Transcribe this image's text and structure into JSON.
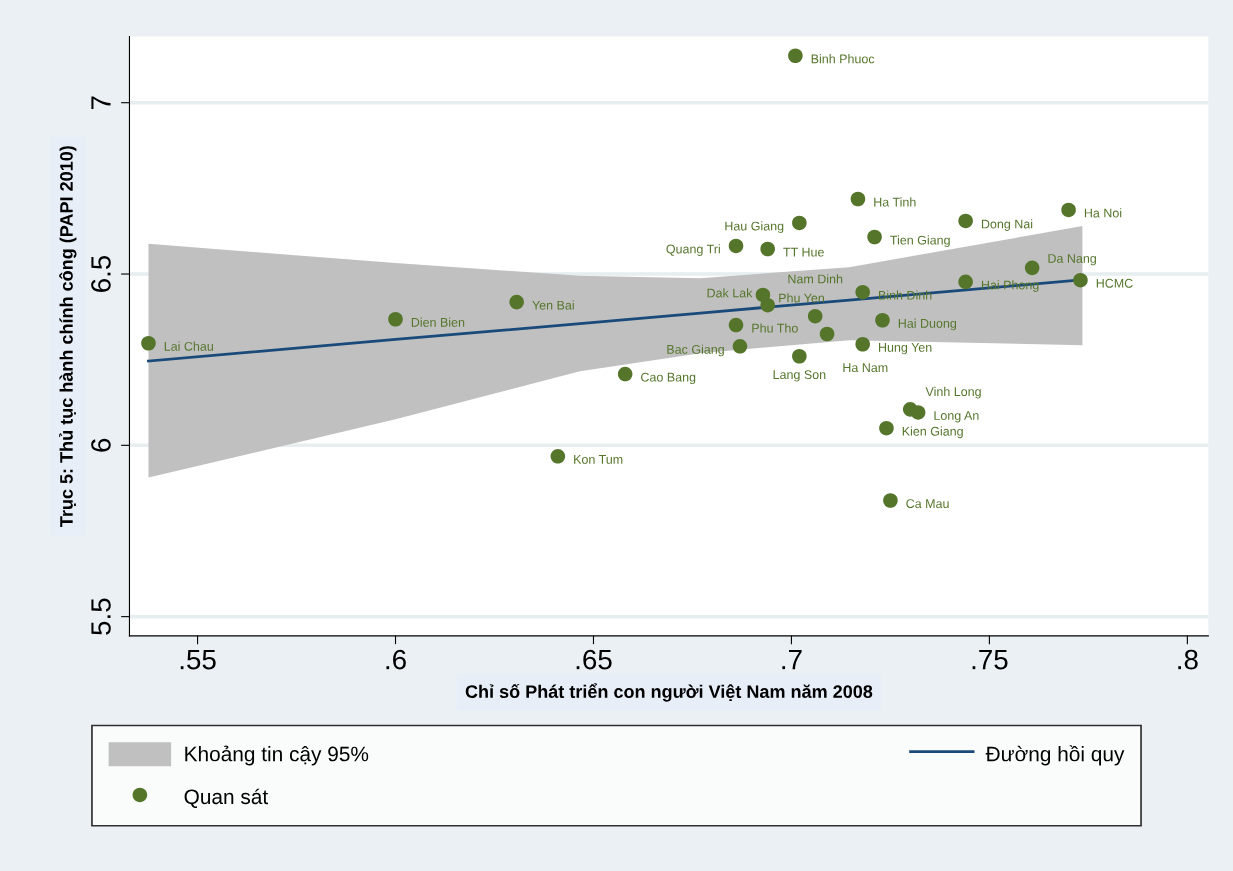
{
  "chart_data": {
    "type": "scatter",
    "xlabel": "Chỉ số Phát triển con người Việt Nam năm 2008",
    "ylabel": "Trục 5: Thủ tục hành chính công (PAPI 2010)",
    "xlim": [
      0.5328,
      0.8053
    ],
    "ylim": [
      5.444,
      7.193
    ],
    "xticks": [
      {
        "value": 0.55,
        "label": ".55"
      },
      {
        "value": 0.6,
        "label": ".6"
      },
      {
        "value": 0.65,
        "label": ".65"
      },
      {
        "value": 0.7,
        "label": ".7"
      },
      {
        "value": 0.75,
        "label": ".75"
      },
      {
        "value": 0.8,
        "label": ".8"
      }
    ],
    "yticks": [
      5.5,
      6,
      6.5,
      7
    ],
    "grid": "y",
    "legend": "bottom",
    "series": [
      {
        "type": "line",
        "name": "Đường hồi quy",
        "color": "#1a4a7a",
        "x": [
          0.5376,
          0.6,
          0.6466,
          0.677,
          0.7146,
          0.7735
        ],
        "values": [
          6.246,
          6.309,
          6.355,
          6.386,
          6.424,
          6.483
        ],
        "lower": [
          5.906,
          6.076,
          6.216,
          6.269,
          6.307,
          6.292
        ],
        "upper": [
          6.588,
          6.532,
          6.495,
          6.488,
          6.52,
          6.64
        ]
      },
      {
        "name": "Quan sát",
        "color": "#55752b",
        "marker": "circle",
        "x": [
          0.5376,
          0.6,
          0.6306,
          0.658,
          0.641,
          0.701,
          0.7168,
          0.702,
          0.744,
          0.77,
          0.721,
          0.686,
          0.694,
          0.7608,
          0.773,
          0.744,
          0.718,
          0.6928,
          0.694,
          0.706,
          0.723,
          0.686,
          0.709,
          0.718,
          0.687,
          0.702,
          0.73,
          0.732,
          0.724,
          0.725
        ],
        "values": [
          6.298,
          6.368,
          6.418,
          6.208,
          5.968,
          7.137,
          6.719,
          6.649,
          6.655,
          6.687,
          6.608,
          6.582,
          6.573,
          6.518,
          6.482,
          6.477,
          6.447,
          6.439,
          6.409,
          6.377,
          6.365,
          6.351,
          6.325,
          6.295,
          6.289,
          6.26,
          6.105,
          6.096,
          6.05,
          5.839
        ]
      }
    ],
    "annotations": [
      "Khoảng tin cậy 95%",
      {
        "text": "Lai Chau",
        "x": 0.5376,
        "y": 6.298
      },
      {
        "text": "Dien Bien",
        "x": 0.6,
        "y": 6.368
      },
      {
        "text": "Yen Bai",
        "x": 0.6306,
        "y": 6.418
      },
      {
        "text": "Cao Bang",
        "x": 0.658,
        "y": 6.208
      },
      {
        "text": "Kon Tum",
        "x": 0.641,
        "y": 5.968
      },
      {
        "text": "Binh Phuoc",
        "x": 0.701,
        "y": 7.137
      },
      {
        "text": "Ha Tinh",
        "x": 0.7168,
        "y": 6.719
      },
      {
        "text": "Hau Giang",
        "x": 0.702,
        "y": 6.649
      },
      {
        "text": "Dong Nai",
        "x": 0.744,
        "y": 6.655
      },
      {
        "text": "Ha Noi",
        "x": 0.77,
        "y": 6.687
      },
      {
        "text": "Tien Giang",
        "x": 0.721,
        "y": 6.608
      },
      {
        "text": "Quang Tri",
        "x": 0.686,
        "y": 6.582
      },
      {
        "text": "TT Hue",
        "x": 0.694,
        "y": 6.573
      },
      {
        "text": "Da Nang",
        "x": 0.7608,
        "y": 6.518
      },
      {
        "text": "HCMC",
        "x": 0.773,
        "y": 6.482
      },
      {
        "text": "Hai Phong",
        "x": 0.744,
        "y": 6.477
      },
      {
        "text": "Binh Dinh",
        "x": 0.718,
        "y": 6.447
      },
      {
        "text": "Phu Yen",
        "x": 0.6928,
        "y": 6.439
      },
      {
        "text": "Dak Lak",
        "x": 0.694,
        "y": 6.409
      },
      {
        "text": "Nam Dinh",
        "x": 0.706,
        "y": 6.377
      },
      {
        "text": "Hai Duong",
        "x": 0.723,
        "y": 6.365
      },
      {
        "text": "Phu Tho",
        "x": 0.686,
        "y": 6.351
      },
      {
        "text": "Ha Nam",
        "x": 0.709,
        "y": 6.325
      },
      {
        "text": "Hung Yen",
        "x": 0.718,
        "y": 6.295
      },
      {
        "text": "Bac Giang",
        "x": 0.687,
        "y": 6.289
      },
      {
        "text": "Lang Son",
        "x": 0.702,
        "y": 6.26
      },
      {
        "text": "Vinh Long",
        "x": 0.73,
        "y": 6.105
      },
      {
        "text": "Long An",
        "x": 0.732,
        "y": 6.096
      },
      {
        "text": "Kien Giang",
        "x": 0.724,
        "y": 6.05
      },
      {
        "text": "Ca Mau",
        "x": 0.725,
        "y": 5.839
      }
    ]
  }
}
